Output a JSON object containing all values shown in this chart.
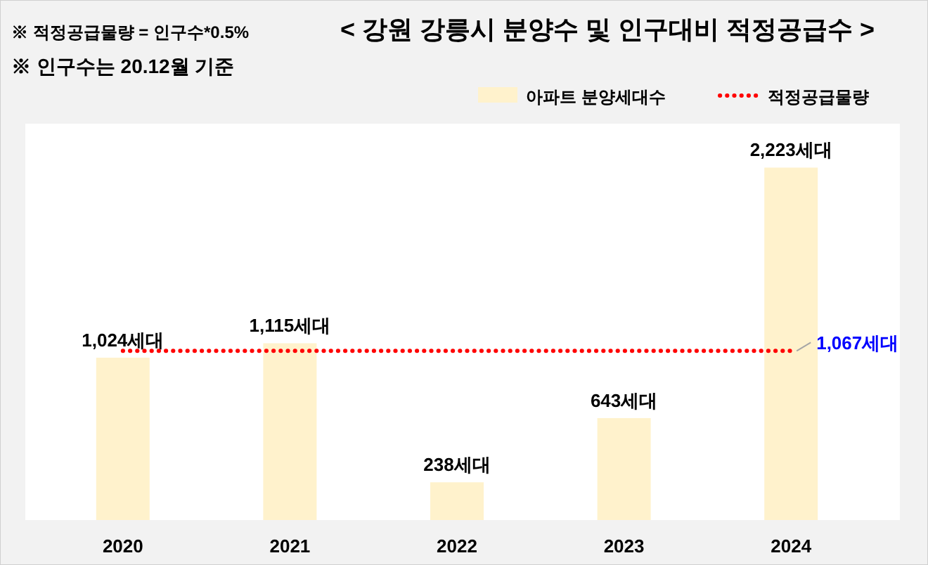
{
  "chart_data": {
    "type": "bar",
    "title": "< 강원 강릉시 분양수 및 인구대비 적정공급수 >",
    "annotations": [
      "※ 적정공급물량 = 인구수*0.5%",
      "※ 인구수는 20.12월 기준"
    ],
    "categories": [
      "2020",
      "2021",
      "2022",
      "2023",
      "2024"
    ],
    "ylim": [
      0,
      2500
    ],
    "series": [
      {
        "name": "아파트 분양세대수",
        "color": "#fff2cc",
        "values": [
          1024,
          1115,
          238,
          643,
          2223
        ],
        "value_labels": [
          "1,024세대",
          "1,115세대",
          "238세대",
          "643세대",
          "2,223세대"
        ]
      },
      {
        "name": "적정공급물량",
        "type": "line",
        "color": "#ff0000",
        "line_style": "dotted",
        "marker": "none",
        "values": [
          1067,
          1067,
          1067,
          1067,
          1067
        ],
        "value_labels": [
          null,
          null,
          null,
          null,
          "1,067세대"
        ]
      }
    ],
    "legend": "top right"
  }
}
